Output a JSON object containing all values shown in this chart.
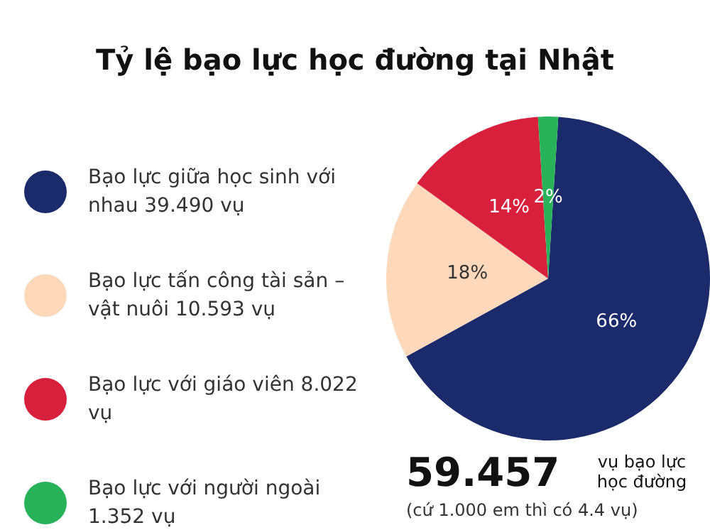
{
  "chart_data": {
    "type": "pie",
    "title": "Tỷ lệ bạo lực học đường tại Nhật",
    "categories": [
      "Bạo lực giữa học sinh với nhau 39.490 vụ",
      "Bạo lực tấn công tài sản – vật nuôi  10.593 vụ",
      "Bạo lực với giáo viên 8.022 vụ",
      "Bạo lực với người ngoài 1.352 vụ"
    ],
    "values": [
      66,
      18,
      14,
      2
    ],
    "colors": [
      "#1b2a6b",
      "#fdd8bb",
      "#d81f3b",
      "#28b35a"
    ],
    "value_labels": [
      "66%",
      "18%",
      "14%",
      "2%"
    ],
    "legend": "left",
    "annotations": [
      "59.457",
      "vụ bạo lực học đường",
      "(cứ 1.000 em thì có 4.4 vụ)"
    ]
  }
}
